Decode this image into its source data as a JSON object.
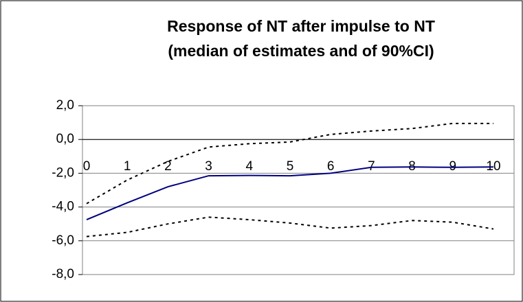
{
  "chart_data": {
    "type": "line",
    "title": "Response of NT after impulse to NT",
    "subtitle": "(median of estimates and of 90%CI)",
    "categories": [
      "0",
      "1",
      "2",
      "3",
      "4",
      "5",
      "6",
      "7",
      "8",
      "9",
      "10"
    ],
    "series": [
      {
        "color": "#000080",
        "dash": "solid",
        "values": [
          -4.75,
          -3.75,
          -2.8,
          -2.15,
          -2.13,
          -2.15,
          -2.0,
          -1.65,
          -1.63,
          -1.65,
          -1.63
        ]
      },
      {
        "color": "#000000",
        "dash": "dotted",
        "values": [
          -3.8,
          -2.4,
          -1.3,
          -0.45,
          -0.25,
          -0.15,
          0.3,
          0.5,
          0.65,
          0.95,
          0.95
        ]
      },
      {
        "color": "#000000",
        "dash": "dotted",
        "values": [
          -5.75,
          -5.5,
          -5.0,
          -4.6,
          -4.75,
          -4.95,
          -5.25,
          -5.1,
          -4.8,
          -4.9,
          -5.3
        ]
      }
    ],
    "ylim": [
      -8,
      2
    ],
    "yticks": [
      {
        "value": -8,
        "label": "-8,0"
      },
      {
        "value": -6,
        "label": "-6,0"
      },
      {
        "value": -4,
        "label": "-4,0"
      },
      {
        "value": -2,
        "label": "-2,0"
      },
      {
        "value": 0,
        "label": "0,0"
      },
      {
        "value": 2,
        "label": "2,0"
      }
    ],
    "grid": true
  }
}
